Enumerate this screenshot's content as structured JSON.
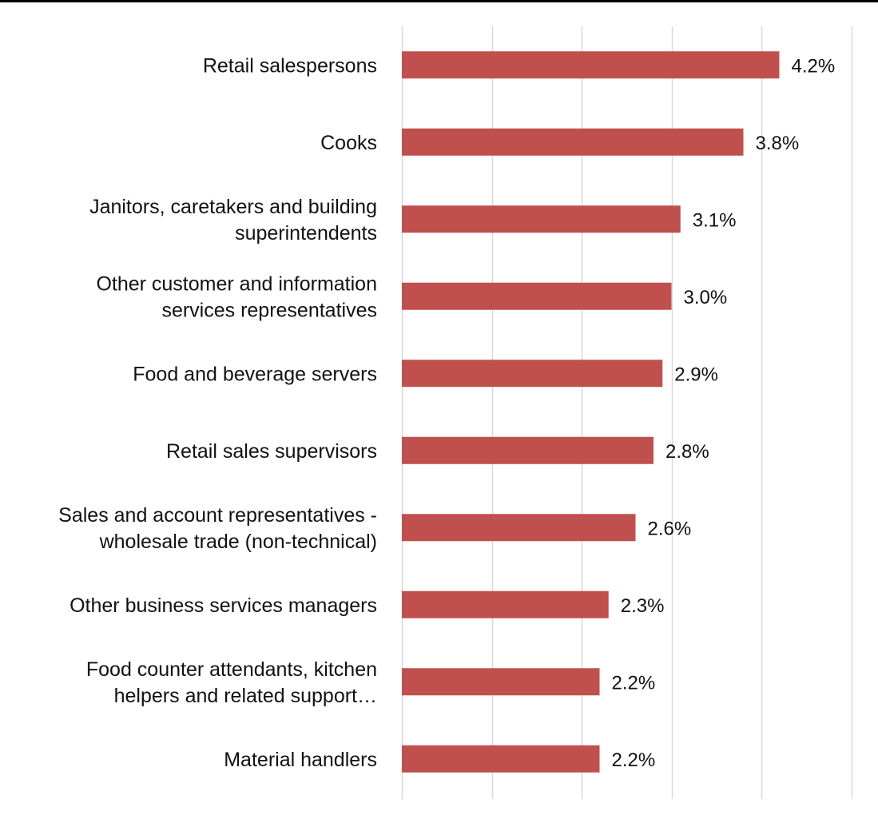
{
  "chart_data": {
    "type": "bar",
    "orientation": "horizontal",
    "categories": [
      [
        "Retail salespersons"
      ],
      [
        "Cooks"
      ],
      [
        "Janitors, caretakers and building",
        "superintendents"
      ],
      [
        "Other customer and information",
        "services representatives"
      ],
      [
        "Food and beverage servers"
      ],
      [
        "Retail sales supervisors"
      ],
      [
        "Sales and account representatives -",
        "wholesale trade (non-technical)"
      ],
      [
        "Other business services managers"
      ],
      [
        "Food counter attendants, kitchen",
        "helpers and related support…"
      ],
      [
        "Material handlers"
      ]
    ],
    "values": [
      4.2,
      3.8,
      3.1,
      3.0,
      2.9,
      2.8,
      2.6,
      2.3,
      2.2,
      2.2
    ],
    "data_labels": [
      "4.2%",
      "3.8%",
      "3.1%",
      "3.0%",
      "2.9%",
      "2.8%",
      "2.6%",
      "2.3%",
      "2.2%",
      "2.2%"
    ],
    "xlim": [
      0,
      5
    ],
    "grid": true,
    "bar_color": "#c0504d",
    "grid_color": "#d9d9d9",
    "title": "",
    "xlabel": "",
    "ylabel": ""
  }
}
